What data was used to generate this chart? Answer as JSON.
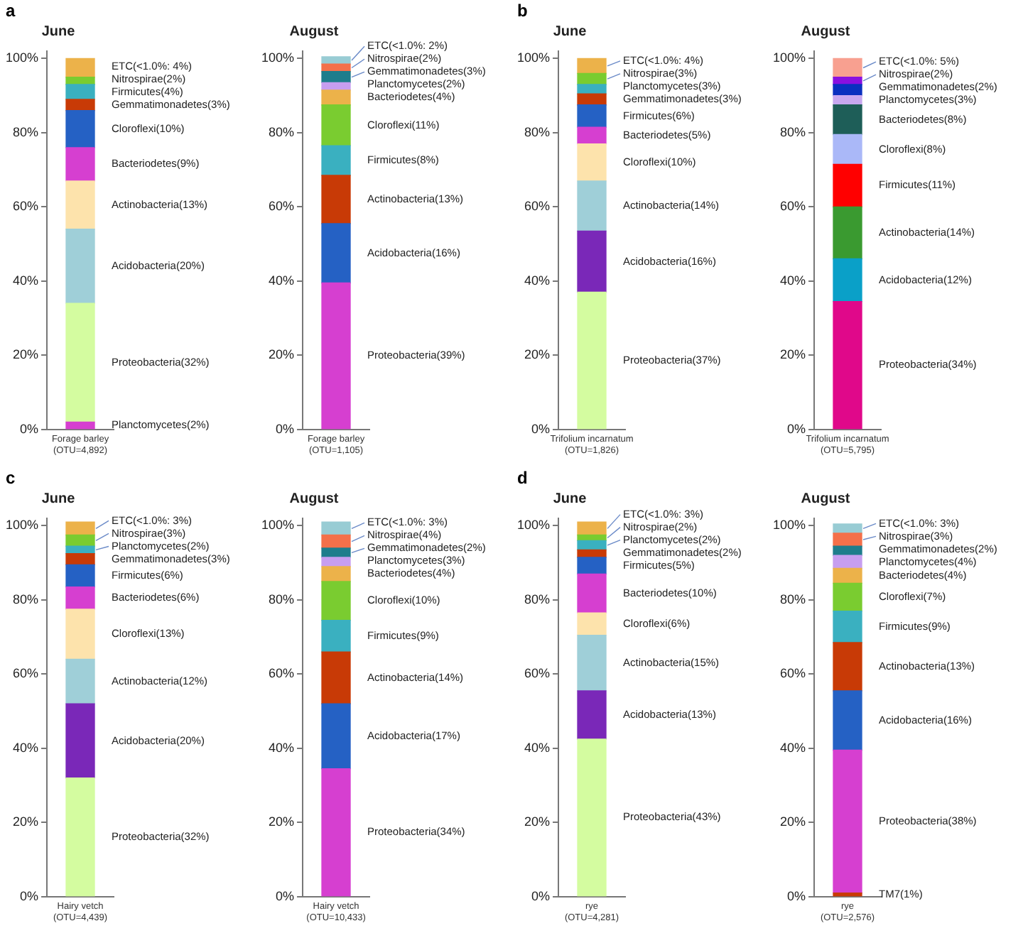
{
  "chart_data": [
    {
      "type": "bar",
      "title": "June",
      "annotations": [
        "a"
      ],
      "categories": [
        "Forage barley\n(OTU=4,892)"
      ],
      "stacked": true,
      "ylim": [
        0,
        102
      ],
      "yticks": [
        {
          "value": 0,
          "label": "0%"
        },
        {
          "value": 20,
          "label": "20%"
        },
        {
          "value": 40,
          "label": "40%"
        },
        {
          "value": 60,
          "label": "60%"
        },
        {
          "value": 80,
          "label": "80%"
        },
        {
          "value": 100,
          "label": "100%"
        }
      ],
      "series": [
        {
          "name": "Planctomycetes(2%)",
          "color": "#d63fd0",
          "values": [
            2
          ]
        },
        {
          "name": "Proteobacteria(32%)",
          "color": "#d4fca0",
          "values": [
            32
          ]
        },
        {
          "name": "Acidobacteria(20%)",
          "color": "#9fcfd8",
          "values": [
            20
          ]
        },
        {
          "name": "Actinobacteria(13%)",
          "color": "#fde3ac",
          "values": [
            13
          ]
        },
        {
          "name": "Bacteriodetes(9%)",
          "color": "#d63fd0",
          "values": [
            9
          ]
        },
        {
          "name": "Cloroflexi(10%)",
          "color": "#2561c4",
          "values": [
            10
          ]
        },
        {
          "name": "Gemmatimonadetes(3%)",
          "color": "#c83a06",
          "values": [
            3
          ]
        },
        {
          "name": "Firmicutes(4%)",
          "color": "#3ab0c0",
          "values": [
            4
          ]
        },
        {
          "name": "Nitrospirae(2%)",
          "color": "#7acc30",
          "values": [
            2
          ]
        },
        {
          "name": "ETC(<1.0%: 4%)",
          "color": "#ecb24a",
          "values": [
            5
          ]
        }
      ]
    },
    {
      "type": "bar",
      "title": "August",
      "categories": [
        "Forage barley\n(OTU=1,105)"
      ],
      "stacked": true,
      "ylim": [
        0,
        102
      ],
      "yticks": [
        {
          "value": 0,
          "label": "0%"
        },
        {
          "value": 20,
          "label": "20%"
        },
        {
          "value": 40,
          "label": "40%"
        },
        {
          "value": 60,
          "label": "60%"
        },
        {
          "value": 80,
          "label": "80%"
        },
        {
          "value": 100,
          "label": "100%"
        }
      ],
      "series": [
        {
          "name": "Proteobacteria(39%)",
          "color": "#d63fd0",
          "values": [
            39.5
          ]
        },
        {
          "name": "Acidobacteria(16%)",
          "color": "#2561c4",
          "values": [
            16
          ]
        },
        {
          "name": "Actinobacteria(13%)",
          "color": "#c83a06",
          "values": [
            13
          ]
        },
        {
          "name": "Firmicutes(8%)",
          "color": "#3ab0c0",
          "values": [
            8
          ]
        },
        {
          "name": "Cloroflexi(11%)",
          "color": "#7acc30",
          "values": [
            11
          ]
        },
        {
          "name": "Bacteriodetes(4%)",
          "color": "#ecb24a",
          "values": [
            4
          ]
        },
        {
          "name": "Planctomycetes(2%)",
          "color": "#c79ef0",
          "values": [
            2
          ]
        },
        {
          "name": "Gemmatimonadetes(3%)",
          "color": "#1e7d8c",
          "values": [
            3
          ]
        },
        {
          "name": "Nitrospirae(2%)",
          "color": "#f4704a",
          "values": [
            2
          ]
        },
        {
          "name": "ETC(<1.0%: 2%)",
          "color": "#98ccd4",
          "values": [
            2
          ]
        }
      ]
    },
    {
      "type": "bar",
      "title": "June",
      "annotations": [
        "b"
      ],
      "categories": [
        "Trifolium incarnatum\n(OTU=1,826)"
      ],
      "stacked": true,
      "ylim": [
        0,
        102
      ],
      "yticks": [
        {
          "value": 0,
          "label": "0%"
        },
        {
          "value": 20,
          "label": "20%"
        },
        {
          "value": 40,
          "label": "40%"
        },
        {
          "value": 60,
          "label": "60%"
        },
        {
          "value": 80,
          "label": "80%"
        },
        {
          "value": 100,
          "label": "100%"
        }
      ],
      "series": [
        {
          "name": "Proteobacteria(37%)",
          "color": "#d4fca0",
          "values": [
            37
          ]
        },
        {
          "name": "Acidobacteria(16%)",
          "color": "#7a28b8",
          "values": [
            16.5
          ]
        },
        {
          "name": "Actinobacteria(14%)",
          "color": "#9fcfd8",
          "values": [
            13.5
          ]
        },
        {
          "name": "Cloroflexi(10%)",
          "color": "#fde3ac",
          "values": [
            10
          ]
        },
        {
          "name": "Bacteriodetes(5%)",
          "color": "#d63fd0",
          "values": [
            4.5
          ]
        },
        {
          "name": "Firmicutes(6%)",
          "color": "#2561c4",
          "values": [
            6
          ]
        },
        {
          "name": "Gemmatimonadetes(3%)",
          "color": "#c83a06",
          "values": [
            3
          ]
        },
        {
          "name": "Planctomycetes(3%)",
          "color": "#3ab0c0",
          "values": [
            2.5
          ]
        },
        {
          "name": "Nitrospirae(3%)",
          "color": "#7acc30",
          "values": [
            3
          ]
        },
        {
          "name": "ETC(<1.0%: 4%)",
          "color": "#ecb24a",
          "values": [
            4
          ]
        }
      ]
    },
    {
      "type": "bar",
      "title": "August",
      "categories": [
        "Trifolium incarnatum\n(OTU=5,795)"
      ],
      "stacked": true,
      "ylim": [
        0,
        102
      ],
      "yticks": [
        {
          "value": 0,
          "label": "0%"
        },
        {
          "value": 20,
          "label": "20%"
        },
        {
          "value": 40,
          "label": "40%"
        },
        {
          "value": 60,
          "label": "60%"
        },
        {
          "value": 80,
          "label": "80%"
        },
        {
          "value": 100,
          "label": "100%"
        }
      ],
      "series": [
        {
          "name": "Proteobacteria(34%)",
          "color": "#e0088a",
          "values": [
            34.5
          ]
        },
        {
          "name": "Acidobacteria(12%)",
          "color": "#0aa0c8",
          "values": [
            11.5
          ]
        },
        {
          "name": "Actinobacteria(14%)",
          "color": "#3a9a30",
          "values": [
            14
          ]
        },
        {
          "name": "Firmicutes(11%)",
          "color": "#ff0000",
          "values": [
            11.5
          ]
        },
        {
          "name": "Cloroflexi(8%)",
          "color": "#aab8f8",
          "values": [
            8
          ]
        },
        {
          "name": "Bacteriodetes(8%)",
          "color": "#1e5e58",
          "values": [
            8
          ]
        },
        {
          "name": "Planctomycetes(3%)",
          "color": "#c8a8f0",
          "values": [
            2.5
          ]
        },
        {
          "name": "Gemmatimonadetes(2%)",
          "color": "#0a30c0",
          "values": [
            3
          ]
        },
        {
          "name": "Nitrospirae(2%)",
          "color": "#8a10e0",
          "values": [
            2
          ]
        },
        {
          "name": "ETC(<1.0%: 5%)",
          "color": "#f8a090",
          "values": [
            5
          ]
        }
      ]
    },
    {
      "type": "bar",
      "title": "June",
      "annotations": [
        "c"
      ],
      "categories": [
        "Hairy vetch\n(OTU=4,439)"
      ],
      "stacked": true,
      "ylim": [
        0,
        102
      ],
      "yticks": [
        {
          "value": 0,
          "label": "0%"
        },
        {
          "value": 20,
          "label": "20%"
        },
        {
          "value": 40,
          "label": "40%"
        },
        {
          "value": 60,
          "label": "60%"
        },
        {
          "value": 80,
          "label": "80%"
        },
        {
          "value": 100,
          "label": "100%"
        }
      ],
      "series": [
        {
          "name": "Proteobacteria(32%)",
          "color": "#d4fca0",
          "values": [
            32
          ]
        },
        {
          "name": "Acidobacteria(20%)",
          "color": "#7a28b8",
          "values": [
            20
          ]
        },
        {
          "name": "Actinobacteria(12%)",
          "color": "#9fcfd8",
          "values": [
            12
          ]
        },
        {
          "name": "Cloroflexi(13%)",
          "color": "#fde3ac",
          "values": [
            13.5
          ]
        },
        {
          "name": "Bacteriodetes(6%)",
          "color": "#d63fd0",
          "values": [
            6
          ]
        },
        {
          "name": "Firmicutes(6%)",
          "color": "#2561c4",
          "values": [
            6
          ]
        },
        {
          "name": "Gemmatimonadetes(3%)",
          "color": "#c83a06",
          "values": [
            3
          ]
        },
        {
          "name": "Planctomycetes(2%)",
          "color": "#3ab0c0",
          "values": [
            2
          ]
        },
        {
          "name": "Nitrospirae(3%)",
          "color": "#7acc30",
          "values": [
            3
          ]
        },
        {
          "name": "ETC(<1.0%: 3%)",
          "color": "#ecb24a",
          "values": [
            3.5
          ]
        }
      ]
    },
    {
      "type": "bar",
      "title": "August",
      "categories": [
        "Hairy vetch\n(OTU=10,433)"
      ],
      "stacked": true,
      "ylim": [
        0,
        102
      ],
      "yticks": [
        {
          "value": 0,
          "label": "0%"
        },
        {
          "value": 20,
          "label": "20%"
        },
        {
          "value": 40,
          "label": "40%"
        },
        {
          "value": 60,
          "label": "60%"
        },
        {
          "value": 80,
          "label": "80%"
        },
        {
          "value": 100,
          "label": "100%"
        }
      ],
      "series": [
        {
          "name": "Proteobacteria(34%)",
          "color": "#d63fd0",
          "values": [
            34.5
          ]
        },
        {
          "name": "Acidobacteria(17%)",
          "color": "#2561c4",
          "values": [
            17.5
          ]
        },
        {
          "name": "Actinobacteria(14%)",
          "color": "#c83a06",
          "values": [
            14
          ]
        },
        {
          "name": "Firmicutes(9%)",
          "color": "#3ab0c0",
          "values": [
            8.5
          ]
        },
        {
          "name": "Cloroflexi(10%)",
          "color": "#7acc30",
          "values": [
            10.5
          ]
        },
        {
          "name": "Bacteriodetes(4%)",
          "color": "#ecb24a",
          "values": [
            4
          ]
        },
        {
          "name": "Planctomycetes(3%)",
          "color": "#c79ef0",
          "values": [
            2.5
          ]
        },
        {
          "name": "Gemmatimonadetes(2%)",
          "color": "#1e7d8c",
          "values": [
            2.5
          ]
        },
        {
          "name": "Nitrospirae(4%)",
          "color": "#f4704a",
          "values": [
            3.5
          ]
        },
        {
          "name": "ETC(<1.0%: 3%)",
          "color": "#98ccd4",
          "values": [
            3.5
          ]
        }
      ]
    },
    {
      "type": "bar",
      "title": "June",
      "annotations": [
        "d"
      ],
      "categories": [
        "rye\n(OTU=4,281)"
      ],
      "stacked": true,
      "ylim": [
        0,
        102
      ],
      "yticks": [
        {
          "value": 0,
          "label": "0%"
        },
        {
          "value": 20,
          "label": "20%"
        },
        {
          "value": 40,
          "label": "40%"
        },
        {
          "value": 60,
          "label": "60%"
        },
        {
          "value": 80,
          "label": "80%"
        },
        {
          "value": 100,
          "label": "100%"
        }
      ],
      "series": [
        {
          "name": "Proteobacteria(43%)",
          "color": "#d4fca0",
          "values": [
            42.5
          ]
        },
        {
          "name": "Acidobacteria(13%)",
          "color": "#7a28b8",
          "values": [
            13
          ]
        },
        {
          "name": "Actinobacteria(15%)",
          "color": "#9fcfd8",
          "values": [
            15
          ]
        },
        {
          "name": "Cloroflexi(6%)",
          "color": "#fde3ac",
          "values": [
            6
          ]
        },
        {
          "name": "Bacteriodetes(10%)",
          "color": "#d63fd0",
          "values": [
            10.5
          ]
        },
        {
          "name": "Firmicutes(5%)",
          "color": "#2561c4",
          "values": [
            4.5
          ]
        },
        {
          "name": "Gemmatimonadetes(2%)",
          "color": "#c83a06",
          "values": [
            2
          ]
        },
        {
          "name": "Planctomycetes(2%)",
          "color": "#3ab0c0",
          "values": [
            2.5
          ]
        },
        {
          "name": "Nitrospirae(2%)",
          "color": "#7acc30",
          "values": [
            1.5
          ]
        },
        {
          "name": "ETC(<1.0%: 3%)",
          "color": "#ecb24a",
          "values": [
            3.5
          ]
        }
      ]
    },
    {
      "type": "bar",
      "title": "August",
      "categories": [
        "rye\n(OTU=2,576)"
      ],
      "stacked": true,
      "ylim": [
        0,
        102
      ],
      "yticks": [
        {
          "value": 0,
          "label": "0%"
        },
        {
          "value": 20,
          "label": "20%"
        },
        {
          "value": 40,
          "label": "40%"
        },
        {
          "value": 60,
          "label": "60%"
        },
        {
          "value": 80,
          "label": "80%"
        },
        {
          "value": 100,
          "label": "100%"
        }
      ],
      "series": [
        {
          "name": "TM7(1%)",
          "color": "#c83a06",
          "values": [
            1
          ]
        },
        {
          "name": "Proteobacteria(38%)",
          "color": "#d63fd0",
          "values": [
            38.5
          ]
        },
        {
          "name": "Acidobacteria(16%)",
          "color": "#2561c4",
          "values": [
            16
          ]
        },
        {
          "name": "Actinobacteria(13%)",
          "color": "#c83a06",
          "values": [
            13
          ]
        },
        {
          "name": "Firmicutes(9%)",
          "color": "#3ab0c0",
          "values": [
            8.5
          ]
        },
        {
          "name": "Cloroflexi(7%)",
          "color": "#7acc30",
          "values": [
            7.5
          ]
        },
        {
          "name": "Bacteriodetes(4%)",
          "color": "#ecb24a",
          "values": [
            4
          ]
        },
        {
          "name": "Planctomycetes(4%)",
          "color": "#c79ef0",
          "values": [
            3.5
          ]
        },
        {
          "name": "Gemmatimonadetes(2%)",
          "color": "#1e7d8c",
          "values": [
            2.5
          ]
        },
        {
          "name": "Nitrospirae(3%)",
          "color": "#f4704a",
          "values": [
            3.5
          ]
        },
        {
          "name": "ETC(<1.0%: 3%)",
          "color": "#98ccd4",
          "values": [
            2.5
          ]
        }
      ]
    }
  ]
}
